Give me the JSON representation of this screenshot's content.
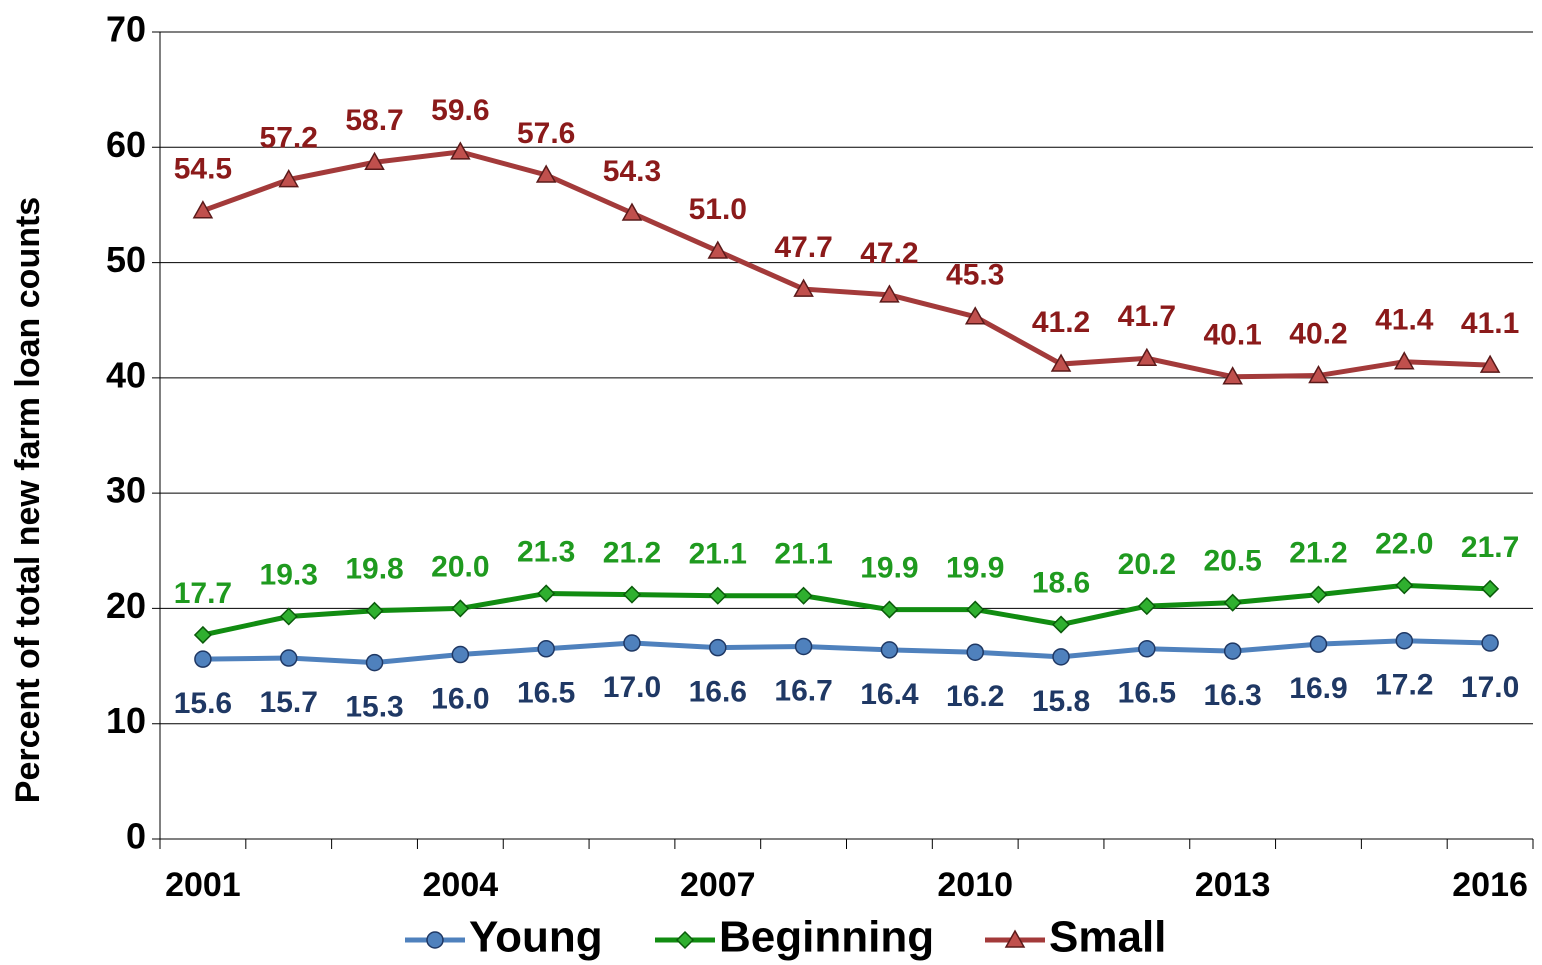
{
  "chart_data": {
    "type": "line",
    "y_label": "Percent of total new farm loan counts",
    "categories": [
      "2001",
      null,
      null,
      "2004",
      null,
      null,
      "2007",
      null,
      null,
      "2010",
      null,
      null,
      "2013",
      null,
      null,
      "2016"
    ],
    "series": [
      {
        "name": "Young",
        "color": "#4f81bd",
        "label_color": "#1f3864",
        "marker": "circle",
        "values": [
          15.6,
          15.7,
          15.3,
          16.0,
          16.5,
          17.0,
          16.6,
          16.7,
          16.4,
          16.2,
          15.8,
          16.5,
          16.3,
          16.9,
          17.2,
          17.0
        ],
        "value_labels": [
          "15.6",
          "15.7",
          "15.3",
          "16.0",
          "16.5",
          "17.0",
          "16.6",
          "16.7",
          "16.4",
          "16.2",
          "15.8",
          "16.5",
          "16.3",
          "16.9",
          "17.2",
          "17.0"
        ]
      },
      {
        "name": "Beginning",
        "color": "#118c11",
        "label_color": "#1f9a1f",
        "marker": "diamond",
        "values": [
          17.7,
          19.3,
          19.8,
          20.0,
          21.3,
          21.2,
          21.1,
          21.1,
          19.9,
          19.9,
          18.6,
          20.2,
          20.5,
          21.2,
          22.0,
          21.7
        ],
        "value_labels": [
          "17.7",
          "19.3",
          "19.8",
          "20.0",
          "21.3",
          "21.2",
          "21.1",
          "21.1",
          "19.9",
          "19.9",
          "18.6",
          "20.2",
          "20.5",
          "21.2",
          "22.0",
          "21.7"
        ]
      },
      {
        "name": "Small",
        "color": "#a33a3a",
        "label_color": "#8b1a1a",
        "marker": "triangle",
        "values": [
          54.5,
          57.2,
          58.7,
          59.6,
          57.6,
          54.3,
          51.0,
          47.7,
          47.2,
          45.3,
          41.2,
          41.7,
          40.1,
          40.2,
          41.4,
          41.1
        ],
        "value_labels": [
          "54.5",
          "57.2",
          "58.7",
          "59.6",
          "57.6",
          "54.3",
          "51.0",
          "47.7",
          "47.2",
          "45.3",
          "41.2",
          "41.7",
          "40.1",
          "40.2",
          "41.4",
          "41.1"
        ]
      }
    ],
    "ylim": [
      0,
      70
    ],
    "yticks": [
      0,
      10,
      20,
      30,
      40,
      50,
      60,
      70
    ],
    "grid": true,
    "legend": "bottom"
  }
}
